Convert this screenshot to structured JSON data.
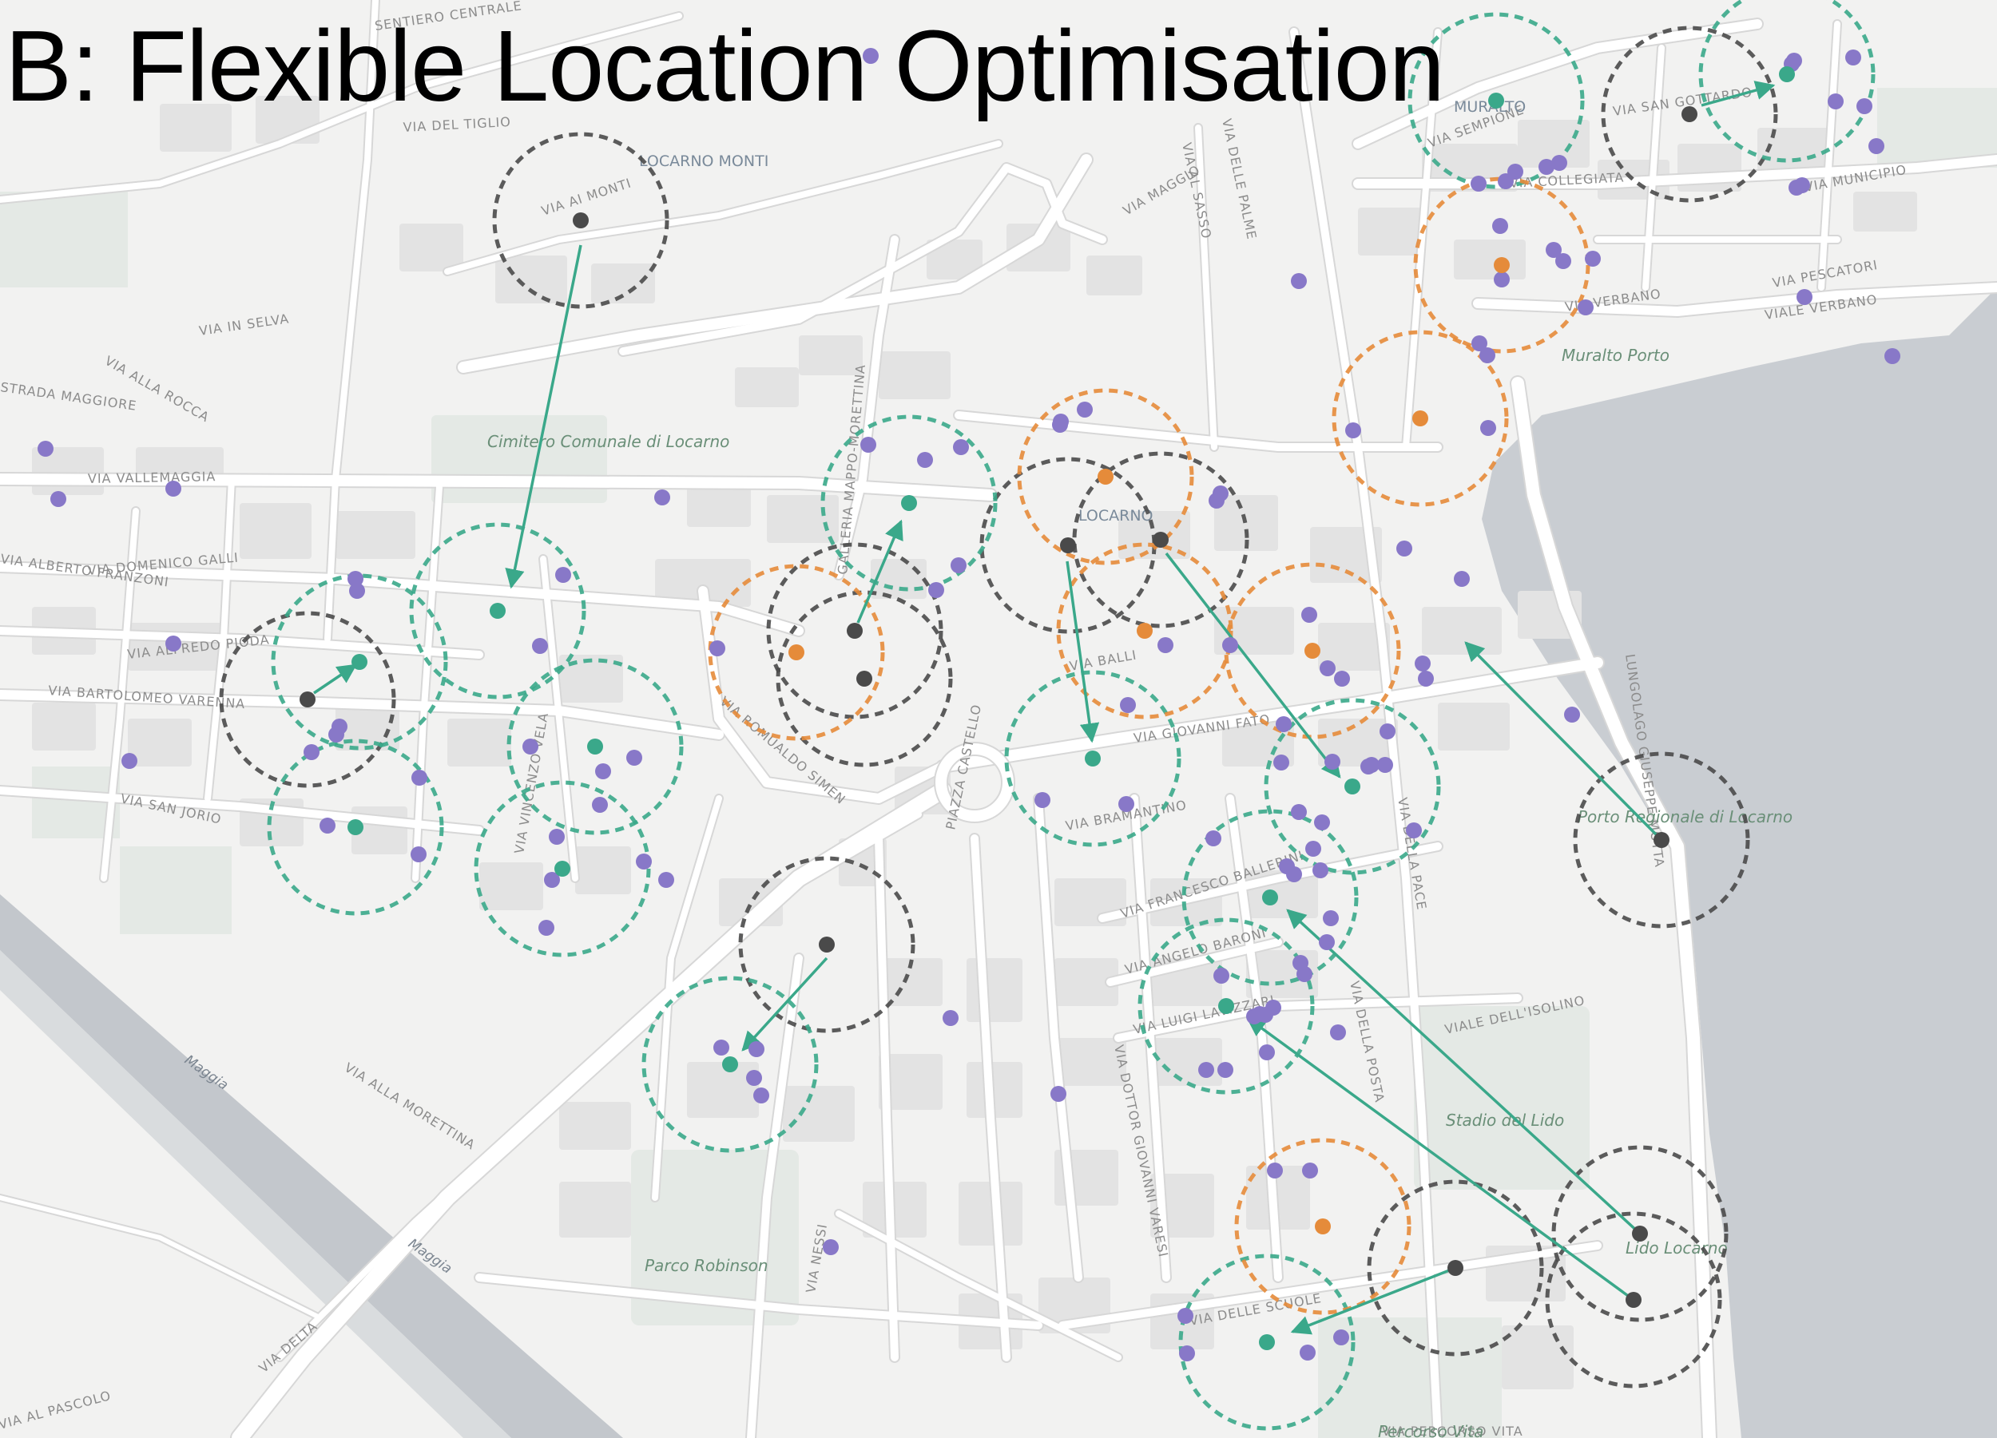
{
  "title": "B: Flexible Location Optimisation",
  "colors": {
    "land": "#f2f2f1",
    "lake": "#c9cdd2",
    "road": "#ffffff",
    "road_casing": "#d7d7d7",
    "block": "#e3e3e3",
    "park": "#e4e9e5",
    "river": "#bfc4ca",
    "demand_point": "#8878c8",
    "original_site": "#4a4a4a",
    "optimised_site": "#3aa88a",
    "retained_site": "#e58b3a",
    "move_arrow": "#3aa88a"
  },
  "labels": {
    "streets": [
      "SENTIERO CENTRALE",
      "VIA DEL TIGLIO",
      "VIA AI MONTI",
      "VIA IN SELVA",
      "VIA ALLA ROCCA",
      "STRADA MAGGIORE",
      "VIA VALLEMAGGIA",
      "VIA DOMENICO GALLI",
      "VIA ALBERTO FRANZONI",
      "VIA ALFREDO PIODA",
      "VIA BARTOLOMEO VARENNA",
      "VIA SAN JORIO",
      "VIA VINCENZO VELA",
      "VIA ALLA MORETTINA",
      "VIA ROMUALDO SIMEN",
      "VIA BALLI",
      "PIAZZA CASTELLO",
      "VIA GIOVANNI FATO",
      "VIA BRAMANTINO",
      "VIA FRANCESCO BALLERINI",
      "VIA ANGELO BARONI",
      "VIA LUIGI LAVIZZARI",
      "VIA DELLA POSTA",
      "VIA DELLE SCUOLE",
      "VIA SEMPIONE",
      "VIA SAN GOTTARDO",
      "VIA COLLEGIATA",
      "VIA VERBANO",
      "VIA PESCATORI",
      "VIA MUNICIPIO",
      "VIALE VERBANO",
      "VIA DELLA PACE",
      "VIALE DELL'ISOLINO",
      "VIA DOTTOR GIOVANNI VARESI",
      "VIA AL SASSO",
      "VIA DELLE PALME",
      "VIA MAGGIO",
      "GALLERIA MAPPO-MORETTINA",
      "VIA DELTA",
      "VIA AL PASCOLO",
      "VIA NESSI",
      "VIA PERCORSO VITA",
      "LUNGOLAGO GIUSEPPE MOTTA"
    ],
    "places": [
      "LOCARNO MONTI",
      "MURALTO",
      "LOCARNO"
    ],
    "green_areas": [
      "Cimitero Comunale di Locarno",
      "Muralto Porto",
      "Porto Regionale di Locarno",
      "Stadio del Lido",
      "Lido Locarno",
      "Parco Robinson",
      "Percorso Vita"
    ],
    "river": "Maggia"
  },
  "map_data": {
    "demand_points_count": 88,
    "sites": [
      {
        "role": "original",
        "moved_to": "green"
      },
      {
        "role": "original",
        "moved_to": "green"
      },
      {
        "role": "original",
        "moved_to": "green"
      },
      {
        "role": "original",
        "moved_to": "green"
      },
      {
        "role": "original",
        "moved_to": "green"
      },
      {
        "role": "original",
        "moved_to": "green"
      },
      {
        "role": "original",
        "moved_to": "green"
      },
      {
        "role": "original",
        "moved_to": "green"
      },
      {
        "role": "original",
        "moved_to": "green"
      },
      {
        "role": "original",
        "moved_to": "green"
      }
    ]
  }
}
